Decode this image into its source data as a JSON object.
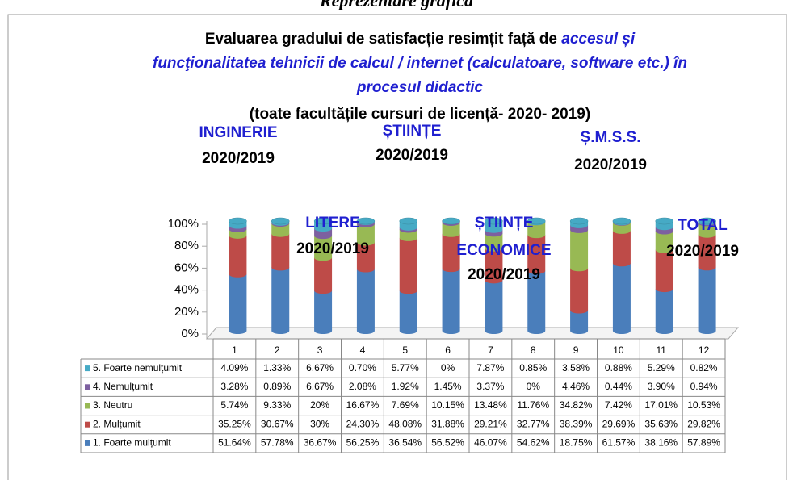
{
  "chart_data": {
    "type": "bar",
    "stacked": true,
    "header": "Reprezentare grafică",
    "title": "Evaluarea gradului de satisfacție resimțit față de",
    "title_emphasis": "accesul și funcţionalitatea tehnicii de calcul / internet (calculatoare, software etc.) în procesul didactic",
    "subtitle": "(toate facultățile cursuri de licență- 2020- 2019)",
    "annotations": [
      {
        "label": [
          "INGINERIE"
        ],
        "period": "2020/2019"
      },
      {
        "label": [
          "ȘTIINȚE"
        ],
        "period": "2020/2019"
      },
      {
        "label": [
          "Ș.M.S.S."
        ],
        "period": "2020/2019"
      },
      {
        "label": [
          "LITERE"
        ],
        "period": "2020/2019"
      },
      {
        "label": [
          "ȘTIINȚE",
          "ECONOMICE"
        ],
        "period": "2020/2019"
      },
      {
        "label": [
          "TOTAL"
        ],
        "period": "2020/2019"
      }
    ],
    "categories": [
      "1",
      "2",
      "3",
      "4",
      "5",
      "6",
      "7",
      "8",
      "9",
      "10",
      "11",
      "12"
    ],
    "ylim": [
      0,
      100
    ],
    "yticks": [
      {
        "value": 0,
        "label": "0%"
      },
      {
        "value": 20,
        "label": "20%"
      },
      {
        "value": 40,
        "label": "40%"
      },
      {
        "value": 60,
        "label": "60%"
      },
      {
        "value": 80,
        "label": "80%"
      },
      {
        "value": 100,
        "label": "100%"
      }
    ],
    "series": [
      {
        "name": "1. Foarte mulțumit",
        "color": "#4a7ebb",
        "values": [
          51.64,
          57.78,
          36.67,
          56.25,
          36.54,
          56.52,
          46.07,
          54.62,
          18.75,
          61.57,
          38.16,
          57.89
        ],
        "value_labels": [
          "51.64%",
          "57.78%",
          "36.67%",
          "56.25%",
          "36.54%",
          "56.52%",
          "46.07%",
          "54.62%",
          "18.75%",
          "61.57%",
          "38.16%",
          "57.89%"
        ]
      },
      {
        "name": "2. Mulțumit",
        "color": "#be4b48",
        "values": [
          35.25,
          30.67,
          30,
          24.3,
          48.08,
          31.88,
          29.21,
          32.77,
          38.39,
          29.69,
          35.63,
          29.82
        ],
        "value_labels": [
          "35.25%",
          "30.67%",
          "30%",
          "24.30%",
          "48.08%",
          "31.88%",
          "29.21%",
          "32.77%",
          "38.39%",
          "29.69%",
          "35.63%",
          "29.82%"
        ]
      },
      {
        "name": "3. Neutru",
        "color": "#98b954",
        "values": [
          5.74,
          9.33,
          20,
          16.67,
          7.69,
          10.15,
          13.48,
          11.76,
          34.82,
          7.42,
          17.01,
          10.53
        ],
        "value_labels": [
          "5.74%",
          "9.33%",
          "20%",
          "16.67%",
          "7.69%",
          "10.15%",
          "13.48%",
          "11.76%",
          "34.82%",
          "7.42%",
          "17.01%",
          "10.53%"
        ]
      },
      {
        "name": "4. Nemulțumit",
        "color": "#7d60a0",
        "values": [
          3.28,
          0.89,
          6.67,
          2.08,
          1.92,
          1.45,
          3.37,
          0,
          4.46,
          0.44,
          3.9,
          0.94
        ],
        "value_labels": [
          "3.28%",
          "0.89%",
          "6.67%",
          "2.08%",
          "1.92%",
          "1.45%",
          "3.37%",
          "0%",
          "4.46%",
          "0.44%",
          "3.90%",
          "0.94%"
        ]
      },
      {
        "name": "5. Foarte nemulțumit",
        "color": "#46aac5",
        "values": [
          4.09,
          1.33,
          6.67,
          0.7,
          5.77,
          0,
          7.87,
          0.85,
          3.58,
          0.88,
          5.29,
          0.82
        ],
        "value_labels": [
          "4.09%",
          "1.33%",
          "6.67%",
          "0.70%",
          "5.77%",
          "0%",
          "7.87%",
          "0.85%",
          "3.58%",
          "0.88%",
          "5.29%",
          "0.82%"
        ]
      }
    ]
  }
}
